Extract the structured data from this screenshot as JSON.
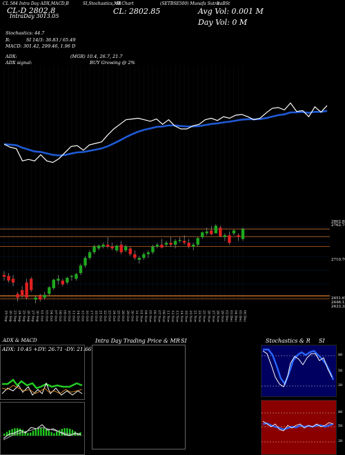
{
  "header": {
    "cl_d_label": "CL-D",
    "cl_d_value": "2802.8",
    "intraday_label": "IntraDay",
    "intraday_value": "3013.05",
    "cl_label": "CL:",
    "cl_value": "2802.85",
    "avg_vol": "Avg Vol: 0.001 M",
    "day_vol": "Day Vol: 0   M",
    "small_left": "CL 584 Intra Day ADX,MACD,B",
    "small_mid": "SI,Stochastics,MR",
    "small_mid2": "SI Chart",
    "small_symbol": "(SETBSE500) Munafa Sutra",
    "small_right": "ItaBSt"
  },
  "indicators": {
    "stochastics": "Stochastics: 44.7",
    "r": "R:",
    "si": "SI 14/3: 36.83 / 65.49",
    "macd": "MACD: 301.42, 299.46, 1.96  D",
    "adx": "ADX:",
    "adx_values": "(MGR) 10.4, 26.7, 21.7",
    "adx_signal": "ADX  signal:",
    "buy_growing": "BUY Growing @ 2%"
  },
  "price_labels": [
    "2802.85",
    "2762.74",
    "2710.76",
    "2451.67",
    "2446.13",
    "2433.35"
  ],
  "price_label_colors": [
    "#ffffff",
    "#ffffff",
    "#ffffff",
    "#ffffff",
    "#ffffff",
    "#ffffff"
  ],
  "dates": [
    "19 Sep",
    "20 Sep",
    "23 Sep",
    "24 Sep",
    "25 Sep",
    "26 Sep",
    "27 Sep",
    "30 Sep",
    "01 Oct",
    "03 Oct",
    "04 Oct",
    "07 Oct",
    "08 Oct",
    "09 Oct",
    "10 Oct",
    "11 Oct",
    "14 Oct",
    "15 Oct",
    "16 Oct",
    "17 Oct",
    "18 Oct",
    "21 Oct",
    "22 Oct",
    "23 Oct",
    "24 Oct",
    "25 Oct",
    "28 Oct",
    "29 Oct",
    "30 Oct",
    "31 Oct",
    "01 Nov",
    "04 Nov",
    "05 Nov",
    "06 Nov",
    "07 Nov",
    "08 Nov",
    "11 Nov",
    "12 Nov",
    "13 Nov",
    "14 Nov",
    "18 Nov",
    "19 Nov",
    "21 Nov",
    "22 Nov",
    "25 Nov",
    "26 Nov",
    "27 Nov",
    "28 Nov",
    "29 Nov",
    "02 Dec",
    "03 Dec",
    "04 Dec",
    "05 Dec",
    "06 Dec"
  ],
  "panels": {
    "adx_macd_title": "ADX  & MACD",
    "adx_readout": "ADX: 10.45  +DY: 26.71  -DY: 21.66",
    "intraday_title": "Intra  Day Trading Price  & MR",
    "intraday_si": "SI",
    "stoch_title": "Stochastics & R",
    "stoch_si": "SI",
    "stoch_levels": [
      "80",
      "50",
      "20"
    ],
    "si_levels": [
      "80",
      "50",
      "20"
    ]
  },
  "colors": {
    "background": "#000000",
    "ema_blue": "#1f5bd8",
    "price_white": "#ffffff",
    "candle_up": "#1fa81f",
    "candle_down": "#e02020",
    "level_orange": "#b86a2a",
    "si_panel": "#8a0000",
    "stoch_blue": "#2a66ff",
    "adx_green": "#22cc22",
    "adx_orange": "#d0832a"
  },
  "chart_data": {
    "type": "line",
    "candles": [
      {
        "o": 2560,
        "h": 2580,
        "l": 2530,
        "c": 2550
      },
      {
        "o": 2555,
        "h": 2570,
        "l": 2520,
        "c": 2530
      },
      {
        "o": 2540,
        "h": 2560,
        "l": 2500,
        "c": 2520
      },
      {
        "o": 2460,
        "h": 2470,
        "l": 2420,
        "c": 2440
      },
      {
        "o": 2480,
        "h": 2500,
        "l": 2440,
        "c": 2450
      },
      {
        "o": 2520,
        "h": 2540,
        "l": 2430,
        "c": 2440
      },
      {
        "o": 2540,
        "h": 2550,
        "l": 2470,
        "c": 2480
      },
      {
        "o": 2430,
        "h": 2450,
        "l": 2410,
        "c": 2440
      },
      {
        "o": 2450,
        "h": 2460,
        "l": 2420,
        "c": 2430
      },
      {
        "o": 2440,
        "h": 2470,
        "l": 2430,
        "c": 2455
      },
      {
        "o": 2460,
        "h": 2500,
        "l": 2450,
        "c": 2495
      },
      {
        "o": 2490,
        "h": 2540,
        "l": 2480,
        "c": 2535
      },
      {
        "o": 2530,
        "h": 2560,
        "l": 2510,
        "c": 2540
      },
      {
        "o": 2530,
        "h": 2540,
        "l": 2500,
        "c": 2510
      },
      {
        "o": 2520,
        "h": 2550,
        "l": 2510,
        "c": 2545
      },
      {
        "o": 2550,
        "h": 2560,
        "l": 2530,
        "c": 2555
      },
      {
        "o": 2540,
        "h": 2570,
        "l": 2530,
        "c": 2565
      },
      {
        "o": 2570,
        "h": 2620,
        "l": 2560,
        "c": 2610
      },
      {
        "o": 2610,
        "h": 2660,
        "l": 2600,
        "c": 2650
      },
      {
        "o": 2650,
        "h": 2690,
        "l": 2640,
        "c": 2680
      },
      {
        "o": 2680,
        "h": 2720,
        "l": 2670,
        "c": 2710
      },
      {
        "o": 2700,
        "h": 2720,
        "l": 2690,
        "c": 2715
      },
      {
        "o": 2710,
        "h": 2730,
        "l": 2700,
        "c": 2720
      },
      {
        "o": 2720,
        "h": 2760,
        "l": 2700,
        "c": 2710
      },
      {
        "o": 2710,
        "h": 2730,
        "l": 2690,
        "c": 2700
      },
      {
        "o": 2690,
        "h": 2720,
        "l": 2680,
        "c": 2715
      },
      {
        "o": 2720,
        "h": 2740,
        "l": 2670,
        "c": 2680
      },
      {
        "o": 2690,
        "h": 2720,
        "l": 2680,
        "c": 2710
      },
      {
        "o": 2700,
        "h": 2710,
        "l": 2660,
        "c": 2670
      },
      {
        "o": 2670,
        "h": 2690,
        "l": 2640,
        "c": 2650
      },
      {
        "o": 2640,
        "h": 2660,
        "l": 2620,
        "c": 2650
      },
      {
        "o": 2650,
        "h": 2680,
        "l": 2640,
        "c": 2670
      },
      {
        "o": 2670,
        "h": 2690,
        "l": 2650,
        "c": 2680
      },
      {
        "o": 2680,
        "h": 2720,
        "l": 2670,
        "c": 2710
      },
      {
        "o": 2710,
        "h": 2730,
        "l": 2700,
        "c": 2720
      },
      {
        "o": 2720,
        "h": 2750,
        "l": 2700,
        "c": 2705
      },
      {
        "o": 2720,
        "h": 2740,
        "l": 2710,
        "c": 2730
      },
      {
        "o": 2730,
        "h": 2760,
        "l": 2710,
        "c": 2720
      },
      {
        "o": 2720,
        "h": 2750,
        "l": 2700,
        "c": 2740
      },
      {
        "o": 2740,
        "h": 2760,
        "l": 2730,
        "c": 2745
      },
      {
        "o": 2740,
        "h": 2770,
        "l": 2720,
        "c": 2730
      },
      {
        "o": 2730,
        "h": 2750,
        "l": 2700,
        "c": 2710
      },
      {
        "o": 2710,
        "h": 2730,
        "l": 2690,
        "c": 2720
      },
      {
        "o": 2720,
        "h": 2760,
        "l": 2710,
        "c": 2755
      },
      {
        "o": 2760,
        "h": 2790,
        "l": 2750,
        "c": 2785
      },
      {
        "o": 2780,
        "h": 2810,
        "l": 2770,
        "c": 2790
      },
      {
        "o": 2795,
        "h": 2820,
        "l": 2770,
        "c": 2775
      },
      {
        "o": 2780,
        "h": 2830,
        "l": 2780,
        "c": 2820
      },
      {
        "o": 2810,
        "h": 2820,
        "l": 2760,
        "c": 2765
      },
      {
        "o": 2760,
        "h": 2780,
        "l": 2740,
        "c": 2770
      },
      {
        "o": 2770,
        "h": 2790,
        "l": 2720,
        "c": 2730
      },
      {
        "o": 2780,
        "h": 2800,
        "l": 2770,
        "c": 2795
      },
      {
        "o": 2770,
        "h": 2780,
        "l": 2740,
        "c": 2760
      },
      {
        "o": 2750,
        "h": 2810,
        "l": 2740,
        "c": 2802.85
      }
    ],
    "levels": [
      2802.85,
      2762.74,
      2710.76,
      2451.67,
      2446.13,
      2433.35
    ],
    "ylim": [
      2410,
      2840
    ]
  }
}
